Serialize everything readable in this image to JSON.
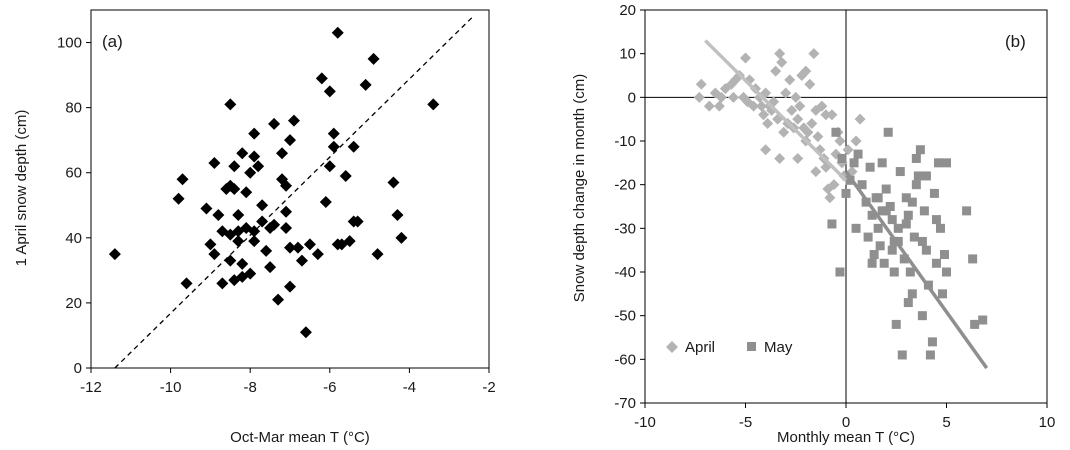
{
  "chart_data": [
    {
      "type": "scatter",
      "panel_label": "(a)",
      "xlabel": "Oct-Mar mean T (°C)",
      "ylabel": "1 April snow depth (cm)",
      "xlim": [
        -12,
        -2
      ],
      "ylim": [
        0,
        110
      ],
      "xticks": [
        -12,
        -10,
        -8,
        -6,
        -4,
        -2
      ],
      "yticks": [
        0,
        20,
        40,
        60,
        80,
        100
      ],
      "grid": false,
      "series": [
        {
          "marker": "diamond",
          "color": "#000000",
          "points": [
            [
              -11.4,
              35
            ],
            [
              -9.8,
              52
            ],
            [
              -9.7,
              58
            ],
            [
              -9.6,
              26
            ],
            [
              -9.1,
              49
            ],
            [
              -9.0,
              38
            ],
            [
              -8.9,
              35
            ],
            [
              -8.9,
              63
            ],
            [
              -8.8,
              47
            ],
            [
              -8.7,
              26
            ],
            [
              -8.7,
              42
            ],
            [
              -8.6,
              55
            ],
            [
              -8.5,
              56
            ],
            [
              -8.5,
              41
            ],
            [
              -8.5,
              33
            ],
            [
              -8.5,
              81
            ],
            [
              -8.4,
              62
            ],
            [
              -8.4,
              55
            ],
            [
              -8.4,
              27
            ],
            [
              -8.3,
              47
            ],
            [
              -8.3,
              42
            ],
            [
              -8.3,
              39
            ],
            [
              -8.2,
              32
            ],
            [
              -8.2,
              28
            ],
            [
              -8.2,
              66
            ],
            [
              -8.1,
              54
            ],
            [
              -8.1,
              43
            ],
            [
              -8.0,
              60
            ],
            [
              -8.0,
              29
            ],
            [
              -7.9,
              72
            ],
            [
              -7.9,
              65
            ],
            [
              -7.9,
              42
            ],
            [
              -7.9,
              39
            ],
            [
              -7.8,
              62
            ],
            [
              -7.7,
              50
            ],
            [
              -7.7,
              45
            ],
            [
              -7.6,
              36
            ],
            [
              -7.5,
              43
            ],
            [
              -7.5,
              31
            ],
            [
              -7.4,
              75
            ],
            [
              -7.4,
              44
            ],
            [
              -7.3,
              21
            ],
            [
              -7.2,
              66
            ],
            [
              -7.2,
              58
            ],
            [
              -7.1,
              56
            ],
            [
              -7.1,
              48
            ],
            [
              -7.1,
              43
            ],
            [
              -7.0,
              70
            ],
            [
              -7.0,
              37
            ],
            [
              -7.0,
              25
            ],
            [
              -6.9,
              76
            ],
            [
              -6.8,
              37
            ],
            [
              -6.7,
              33
            ],
            [
              -6.6,
              11
            ],
            [
              -6.5,
              38
            ],
            [
              -6.3,
              35
            ],
            [
              -6.2,
              89
            ],
            [
              -6.1,
              51
            ],
            [
              -6.0,
              85
            ],
            [
              -6.0,
              62
            ],
            [
              -5.9,
              72
            ],
            [
              -5.9,
              68
            ],
            [
              -5.8,
              103
            ],
            [
              -5.8,
              38
            ],
            [
              -5.7,
              38
            ],
            [
              -5.6,
              59
            ],
            [
              -5.5,
              39
            ],
            [
              -5.4,
              68
            ],
            [
              -5.4,
              45
            ],
            [
              -5.3,
              45
            ],
            [
              -5.1,
              87
            ],
            [
              -4.9,
              95
            ],
            [
              -4.8,
              35
            ],
            [
              -4.4,
              57
            ],
            [
              -4.3,
              47
            ],
            [
              -4.2,
              40
            ],
            [
              -3.4,
              81
            ]
          ]
        }
      ],
      "reference_line": {
        "style": "dashed",
        "color": "#000000",
        "points": [
          [
            -11.4,
            0
          ],
          [
            -2.4,
            108
          ]
        ]
      }
    },
    {
      "type": "scatter",
      "panel_label": "(b)",
      "xlabel": "Monthly mean T (°C)",
      "ylabel": "Snow depth change in month (cm)",
      "xlim": [
        -10,
        10
      ],
      "ylim": [
        -70,
        20
      ],
      "xticks": [
        -10,
        -5,
        0,
        5,
        10
      ],
      "yticks": [
        -70,
        -60,
        -50,
        -40,
        -30,
        -20,
        -10,
        0,
        10,
        20
      ],
      "zero_lines": true,
      "grid": false,
      "legend_position": "bottom-left",
      "series": [
        {
          "name": "April",
          "marker": "diamond",
          "color": "#b3b3b3",
          "trend": {
            "color": "#c0c0c0",
            "points": [
              [
                -7.0,
                13
              ],
              [
                0.0,
                -19
              ]
            ]
          },
          "points": [
            [
              -7.2,
              3
            ],
            [
              -7.3,
              0
            ],
            [
              -6.8,
              -2
            ],
            [
              -6.5,
              1
            ],
            [
              -6.3,
              -2
            ],
            [
              -6.0,
              2
            ],
            [
              -5.7,
              3
            ],
            [
              -5.5,
              4
            ],
            [
              -5.3,
              5
            ],
            [
              -5.0,
              9
            ],
            [
              -4.8,
              4
            ],
            [
              -4.5,
              2
            ],
            [
              -4.3,
              0
            ],
            [
              -4.0,
              1
            ],
            [
              -3.8,
              -2
            ],
            [
              -3.5,
              6
            ],
            [
              -3.3,
              10
            ],
            [
              -3.2,
              8
            ],
            [
              -3.0,
              1
            ],
            [
              -2.8,
              4
            ],
            [
              -2.5,
              0
            ],
            [
              -2.2,
              5
            ],
            [
              -2.0,
              6
            ],
            [
              -1.8,
              3
            ],
            [
              -1.6,
              10
            ],
            [
              -5.1,
              0
            ],
            [
              -4.9,
              -1
            ],
            [
              -4.6,
              -2
            ],
            [
              -4.2,
              -2
            ],
            [
              -4.1,
              -4
            ],
            [
              -3.9,
              -6
            ],
            [
              -3.7,
              -3
            ],
            [
              -3.6,
              -1
            ],
            [
              -3.4,
              -5
            ],
            [
              -3.3,
              -14
            ],
            [
              -3.1,
              -8
            ],
            [
              -2.9,
              -6
            ],
            [
              -2.7,
              -3
            ],
            [
              -2.6,
              -7
            ],
            [
              -2.4,
              -5
            ],
            [
              -2.3,
              -2
            ],
            [
              -2.1,
              -7
            ],
            [
              -2.0,
              -10
            ],
            [
              -1.9,
              -8
            ],
            [
              -1.7,
              -6
            ],
            [
              -1.5,
              -3
            ],
            [
              -1.4,
              -9
            ],
            [
              -1.3,
              -12
            ],
            [
              -1.2,
              -2
            ],
            [
              -1.1,
              -14
            ],
            [
              -1.0,
              -16
            ],
            [
              -0.9,
              -21
            ],
            [
              -0.8,
              -23
            ],
            [
              -0.7,
              -4
            ],
            [
              -0.6,
              -20
            ],
            [
              -0.5,
              -13
            ],
            [
              -0.4,
              -8
            ],
            [
              -0.3,
              -10
            ],
            [
              -0.2,
              -15
            ],
            [
              -0.1,
              -18
            ],
            [
              0.1,
              -12
            ],
            [
              0.3,
              -17
            ],
            [
              0.5,
              -10
            ],
            [
              0.7,
              -5
            ],
            [
              -1.5,
              -17
            ],
            [
              -2.4,
              -14
            ],
            [
              -4.0,
              -12
            ],
            [
              -5.6,
              0
            ],
            [
              -6.2,
              0
            ],
            [
              -1.0,
              -4
            ]
          ]
        },
        {
          "name": "May",
          "marker": "square",
          "color": "#8f8f8f",
          "trend": {
            "color": "#8f8f8f",
            "points": [
              [
                0.0,
                -17
              ],
              [
                7.0,
                -62
              ]
            ]
          },
          "points": [
            [
              -0.7,
              -29
            ],
            [
              -0.5,
              -8
            ],
            [
              -0.3,
              -40
            ],
            [
              -0.2,
              -14
            ],
            [
              0.0,
              -22
            ],
            [
              0.2,
              -19
            ],
            [
              0.4,
              -15
            ],
            [
              0.6,
              -13
            ],
            [
              0.8,
              -20
            ],
            [
              1.0,
              -24
            ],
            [
              1.1,
              -32
            ],
            [
              1.2,
              -16
            ],
            [
              1.3,
              -27
            ],
            [
              1.4,
              -36
            ],
            [
              1.5,
              -23
            ],
            [
              1.6,
              -30
            ],
            [
              1.7,
              -34
            ],
            [
              1.8,
              -15
            ],
            [
              1.9,
              -38
            ],
            [
              2.0,
              -21
            ],
            [
              2.1,
              -8
            ],
            [
              2.2,
              -25
            ],
            [
              2.3,
              -28
            ],
            [
              2.4,
              -33
            ],
            [
              2.5,
              -52
            ],
            [
              2.6,
              -30
            ],
            [
              2.7,
              -17
            ],
            [
              2.8,
              -59
            ],
            [
              2.9,
              -37
            ],
            [
              3.0,
              -23
            ],
            [
              3.1,
              -27
            ],
            [
              3.2,
              -40
            ],
            [
              3.3,
              -45
            ],
            [
              3.4,
              -32
            ],
            [
              3.5,
              -14
            ],
            [
              3.6,
              -18
            ],
            [
              3.7,
              -12
            ],
            [
              3.8,
              -50
            ],
            [
              3.9,
              -26
            ],
            [
              4.0,
              -35
            ],
            [
              4.1,
              -43
            ],
            [
              4.2,
              -59
            ],
            [
              4.3,
              -56
            ],
            [
              4.4,
              -22
            ],
            [
              4.5,
              -38
            ],
            [
              4.6,
              -15
            ],
            [
              4.7,
              -30
            ],
            [
              4.8,
              -45
            ],
            [
              4.9,
              -36
            ],
            [
              5.0,
              -15
            ],
            [
              1.3,
              -38
            ],
            [
              1.6,
              -23
            ],
            [
              2.0,
              -26
            ],
            [
              2.3,
              -35
            ],
            [
              2.6,
              -33
            ],
            [
              3.0,
              -29
            ],
            [
              3.3,
              -24
            ],
            [
              3.5,
              -20
            ],
            [
              4.0,
              -18
            ],
            [
              4.5,
              -28
            ],
            [
              5.0,
              -40
            ],
            [
              6.0,
              -26
            ],
            [
              6.3,
              -37
            ],
            [
              6.4,
              -52
            ],
            [
              6.8,
              -51
            ],
            [
              0.5,
              -30
            ],
            [
              1.8,
              -26
            ],
            [
              2.4,
              -40
            ],
            [
              3.1,
              -47
            ],
            [
              3.8,
              -33
            ]
          ]
        }
      ]
    }
  ]
}
